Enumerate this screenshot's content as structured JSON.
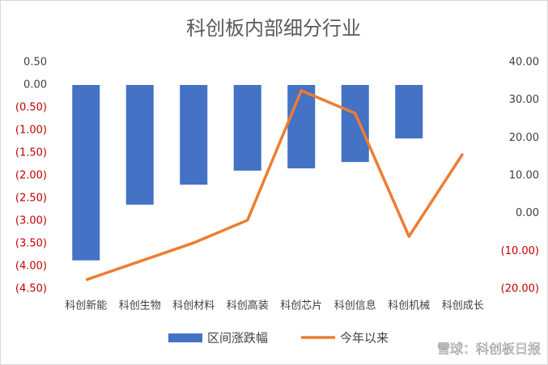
{
  "chart_data": {
    "type": "bar-line",
    "title": "科创板内部细分行业",
    "categories": [
      "科创新能",
      "科创生物",
      "科创材料",
      "科创高装",
      "科创芯片",
      "科创信息",
      "科创机械",
      "科创成长"
    ],
    "series": [
      {
        "name": "区间涨跌幅",
        "type": "bar",
        "color": "#4472c4",
        "values": [
          -3.87,
          -2.64,
          -2.2,
          -1.89,
          -1.84,
          -1.7,
          -1.18,
          null
        ]
      },
      {
        "name": "今年以来",
        "type": "line",
        "axis": "y2",
        "color": "#ed7d31",
        "values": [
          -17.6,
          -12.7,
          -7.8,
          -1.8,
          32.5,
          26.5,
          -6.1,
          15.8
        ]
      }
    ],
    "ylim": [
      -4.5,
      0.5
    ],
    "yticks": [
      {
        "value": 0.5,
        "label": "0.50"
      },
      {
        "value": 0,
        "label": "0.00"
      },
      {
        "value": -0.5,
        "label": "(0.50)"
      },
      {
        "value": -1,
        "label": "(1.00)"
      },
      {
        "value": -1.5,
        "label": "(1.50)"
      },
      {
        "value": -2,
        "label": "(2.00)"
      },
      {
        "value": -2.5,
        "label": "(2.50)"
      },
      {
        "value": -3,
        "label": "(3.00)"
      },
      {
        "value": -3.5,
        "label": "(3.50)"
      },
      {
        "value": -4,
        "label": "(4.00)"
      },
      {
        "value": -4.5,
        "label": "(4.50)"
      }
    ],
    "y2lim": [
      -20,
      40
    ],
    "y2ticks": [
      {
        "value": 40,
        "label": "40.00"
      },
      {
        "value": 30,
        "label": "30.00"
      },
      {
        "value": 20,
        "label": "20.00"
      },
      {
        "value": 10,
        "label": "10.00"
      },
      {
        "value": 0,
        "label": "0.00"
      },
      {
        "value": -10,
        "label": "(10.00)"
      },
      {
        "value": -20,
        "label": "(20.00)"
      }
    ],
    "negative_color": "#c00000",
    "watermark": "雪球：科创板日报"
  }
}
